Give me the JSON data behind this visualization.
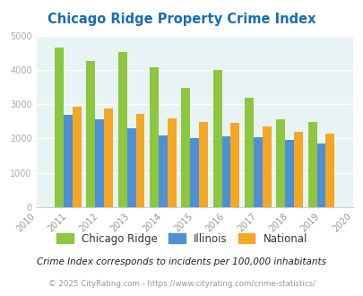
{
  "title": "Chicago Ridge Property Crime Index",
  "years": [
    2010,
    2011,
    2012,
    2013,
    2014,
    2015,
    2016,
    2017,
    2018,
    2019,
    2020
  ],
  "bar_years": [
    2011,
    2012,
    2013,
    2014,
    2015,
    2016,
    2017,
    2018,
    2019
  ],
  "chicago_ridge": [
    4650,
    4270,
    4530,
    4080,
    3480,
    3990,
    3180,
    2550,
    2480
  ],
  "illinois": [
    2680,
    2570,
    2300,
    2090,
    2020,
    2060,
    2040,
    1970,
    1850
  ],
  "national": [
    2920,
    2880,
    2720,
    2590,
    2480,
    2450,
    2340,
    2200,
    2130
  ],
  "chicago_ridge_color": "#8dc63f",
  "illinois_color": "#4d90d5",
  "national_color": "#f5a623",
  "bg_color": "#e8f4f4",
  "ylim": [
    0,
    5000
  ],
  "xlim": [
    2010,
    2020
  ],
  "title_color": "#1a6db5",
  "subtitle": "Crime Index corresponds to incidents per 100,000 inhabitants",
  "footer": "© 2025 CityRating.com - https://www.cityrating.com/crime-statistics/",
  "subtitle_color": "#222222",
  "footer_color": "#999999",
  "legend_labels": [
    "Chicago Ridge",
    "Illinois",
    "National"
  ],
  "bar_width": 0.28
}
